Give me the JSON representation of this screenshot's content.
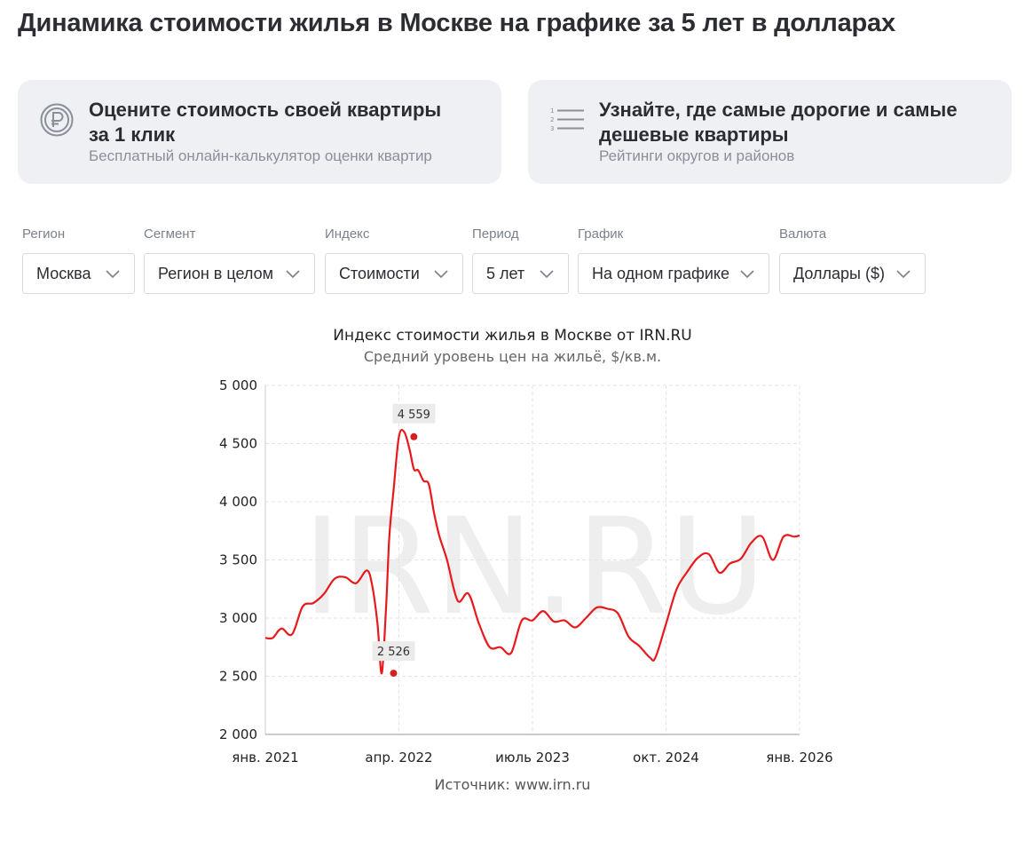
{
  "page_title": "Динамика стоимости жилья в Москве на графике за 5 лет в долларах",
  "cards": [
    {
      "title": "Оцените стоимость своей квартиры за 1 клик",
      "subtitle": "Бесплатный онлайн-калькулятор оценки квартир",
      "icon": "ruble-coin-icon"
    },
    {
      "title": "Узнайте, где самые дорогие и самые дешевые квартиры",
      "subtitle": "Рейтинги округов и районов",
      "icon": "numbered-list-icon"
    }
  ],
  "filters": [
    {
      "label": "Регион",
      "value": "Москва"
    },
    {
      "label": "Сегмент",
      "value": "Регион в целом"
    },
    {
      "label": "Индекс",
      "value": "Стоимости"
    },
    {
      "label": "Период",
      "value": "5 лет"
    },
    {
      "label": "График",
      "value": "На одном графике"
    },
    {
      "label": "Валюта",
      "value": "Доллары ($)"
    }
  ],
  "chart_data": {
    "type": "line",
    "title": "Индекс стоимости жилья в Москве от IRN.RU",
    "subtitle": "Средний уровень цен на жильё, $/кв.м.",
    "source": "Источник:  www.irn.ru",
    "watermark": "IRN.RU",
    "color": "#e8191c",
    "ylim": [
      2000,
      5000
    ],
    "yticks": [
      "2 000",
      "2 500",
      "3 000",
      "3 500",
      "4 000",
      "4 500",
      "5 000"
    ],
    "ytick_values": [
      2000,
      2500,
      3000,
      3500,
      4000,
      4500,
      5000
    ],
    "xlim": [
      2021.0,
      2026.0
    ],
    "xticks": [
      "янв. 2021",
      "апр. 2022",
      "июль 2023",
      "окт. 2024",
      "янв. 2026"
    ],
    "xtick_values": [
      2021.0,
      2022.25,
      2023.5,
      2024.75,
      2026.0
    ],
    "grid": true,
    "annotations": [
      {
        "label": "2 526",
        "x": 2022.2,
        "y": 2526
      },
      {
        "label": "4 559",
        "x": 2022.39,
        "y": 4559
      }
    ],
    "series": [
      {
        "x": [
          2021.0,
          2021.07,
          2021.15,
          2021.25,
          2021.35,
          2021.45,
          2021.55,
          2021.65,
          2021.75,
          2021.85,
          2021.95,
          2022.0,
          2022.05,
          2022.09,
          2022.13,
          2022.16,
          2022.2,
          2022.25,
          2022.3,
          2022.35,
          2022.39,
          2022.43,
          2022.48,
          2022.53,
          2022.58,
          2022.63,
          2022.7,
          2022.8,
          2022.9,
          2023.0,
          2023.1,
          2023.2,
          2023.3,
          2023.4,
          2023.5,
          2023.6,
          2023.7,
          2023.8,
          2023.9,
          2024.0,
          2024.1,
          2024.2,
          2024.3,
          2024.4,
          2024.5,
          2024.6,
          2024.65,
          2024.75,
          2024.85,
          2024.95,
          2025.05,
          2025.15,
          2025.25,
          2025.35,
          2025.45,
          2025.55,
          2025.65,
          2025.75,
          2025.85,
          2025.95,
          2026.0
        ],
        "y": [
          2830,
          2830,
          2910,
          2860,
          3100,
          3130,
          3210,
          3340,
          3350,
          3300,
          3410,
          3280,
          2950,
          2526,
          3100,
          3700,
          4100,
          4559,
          4600,
          4450,
          4280,
          4270,
          4180,
          4150,
          3900,
          3700,
          3500,
          3150,
          3210,
          2950,
          2750,
          2750,
          2700,
          2980,
          2980,
          3060,
          2970,
          2980,
          2920,
          3000,
          3090,
          3080,
          3040,
          2840,
          2760,
          2660,
          2660,
          2950,
          3250,
          3400,
          3520,
          3550,
          3390,
          3470,
          3510,
          3650,
          3700,
          3500,
          3700,
          3700,
          3710
        ]
      }
    ]
  }
}
